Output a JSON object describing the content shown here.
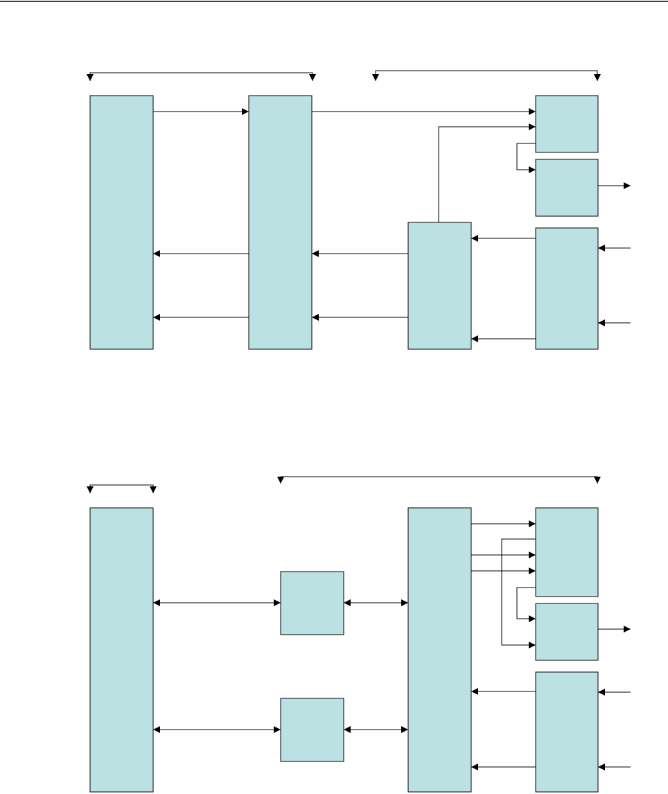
{
  "colors": {
    "block_fill": "#bce1e3",
    "block_stroke": "#000000",
    "line": "#000000",
    "background": "#ffffff"
  },
  "diagrams": [
    {
      "name": "top-diagram",
      "blocks": [
        {
          "id": "top-block-a",
          "label": ""
        },
        {
          "id": "top-block-b",
          "label": ""
        },
        {
          "id": "top-block-c",
          "label": ""
        },
        {
          "id": "top-block-d",
          "label": ""
        },
        {
          "id": "top-block-e",
          "label": ""
        },
        {
          "id": "top-block-f",
          "label": ""
        }
      ]
    },
    {
      "name": "bottom-diagram",
      "blocks": [
        {
          "id": "bottom-block-a",
          "label": ""
        },
        {
          "id": "bottom-block-b",
          "label": ""
        },
        {
          "id": "bottom-block-c",
          "label": ""
        },
        {
          "id": "bottom-block-d",
          "label": ""
        },
        {
          "id": "bottom-block-e",
          "label": ""
        },
        {
          "id": "bottom-block-f",
          "label": ""
        }
      ]
    }
  ]
}
